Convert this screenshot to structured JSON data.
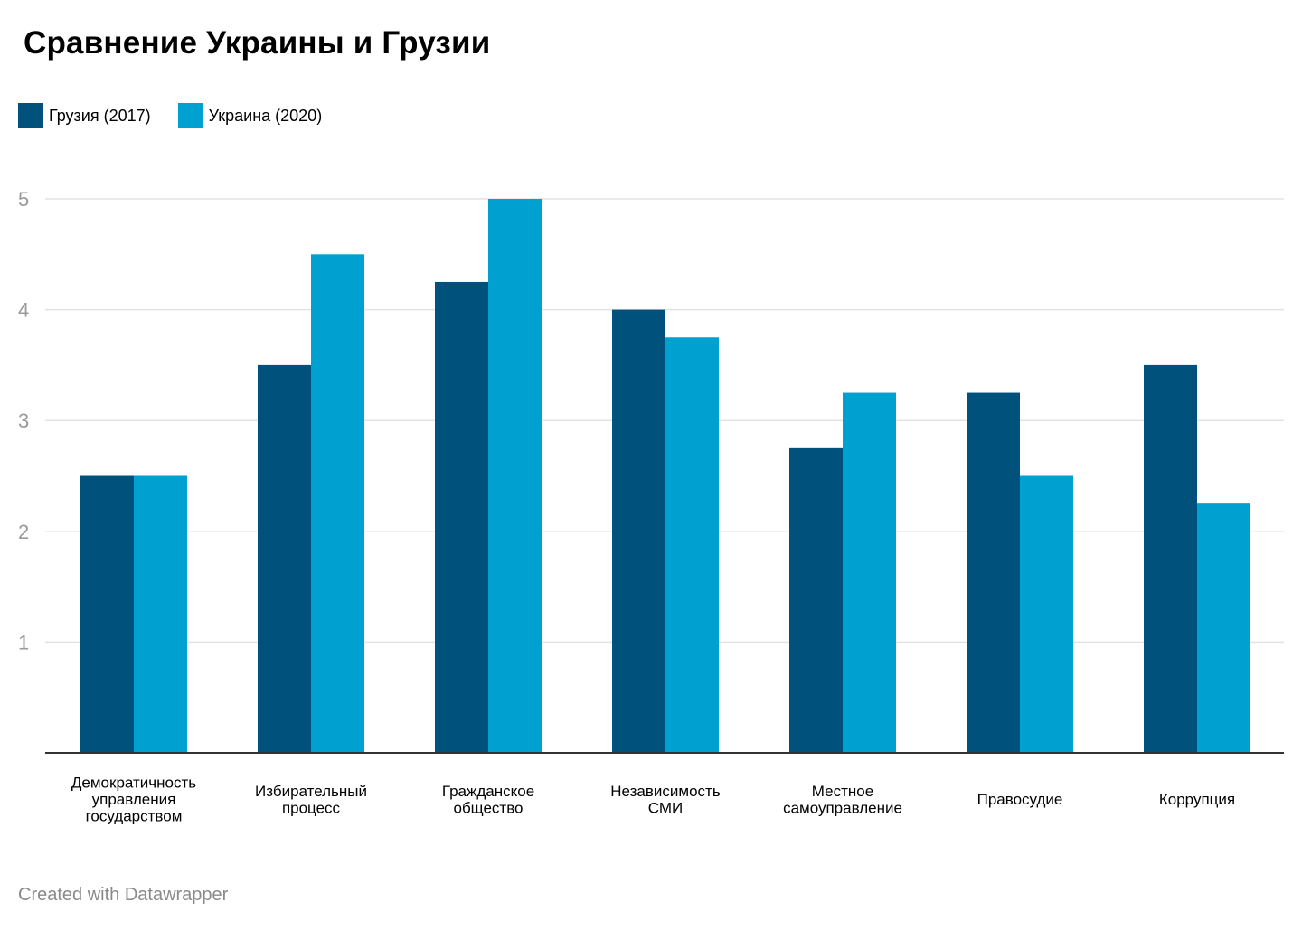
{
  "title": "Сравнение Украины и Грузии",
  "footer": "Created with Datawrapper",
  "colors": {
    "georgia": "#00527c",
    "ukraine": "#00a1d0",
    "grid": "#e3e3e3",
    "axis": "#333333",
    "tick_label": "#9a9a9a"
  },
  "chart_data": {
    "type": "bar",
    "title": "Сравнение Украины и Грузии",
    "categories": [
      [
        "Демократичность",
        "управления",
        "государством"
      ],
      [
        "Избирательный",
        "процесс"
      ],
      [
        "Гражданское",
        "общество"
      ],
      [
        "Независимость",
        "СМИ"
      ],
      [
        "Местное",
        "самоуправление"
      ],
      [
        "Правосудие"
      ],
      [
        "Коррупция"
      ]
    ],
    "series": [
      {
        "name": "Грузия (2017)",
        "color": "#00527c",
        "values": [
          2.5,
          3.5,
          4.25,
          4.0,
          2.75,
          3.25,
          3.5
        ]
      },
      {
        "name": "Украина (2020)",
        "color": "#00a1d0",
        "values": [
          2.5,
          4.5,
          5.0,
          3.75,
          3.25,
          2.5,
          2.25
        ]
      }
    ],
    "ylim": [
      0,
      5
    ],
    "yticks": [
      "1",
      "2",
      "3",
      "4",
      "5"
    ],
    "xlabel": "",
    "ylabel": "",
    "grid": true,
    "legend": "top-left"
  }
}
